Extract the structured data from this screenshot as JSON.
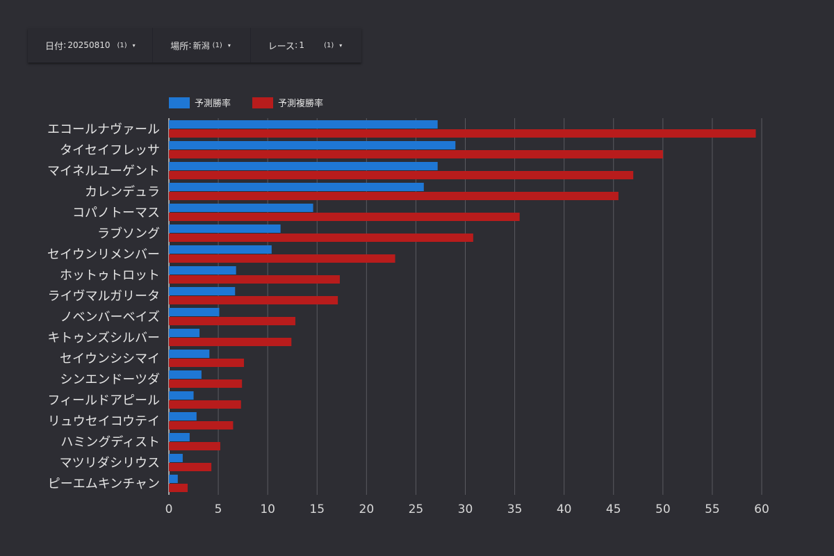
{
  "filters": [
    {
      "label": "日付",
      "value": "20250810",
      "count": "(1)",
      "caret": "▾"
    },
    {
      "label": "場所",
      "value": "新潟",
      "count": "(1)",
      "caret": "▾"
    },
    {
      "label": "レース",
      "value": "1",
      "count": "(1)",
      "caret": "▾"
    }
  ],
  "colors": {
    "series1": "#1f77d4",
    "series2": "#b81c1c",
    "grid": "#5a5a60",
    "background": "#2d2d33"
  },
  "chart_data": {
    "type": "bar",
    "orientation": "horizontal",
    "categories": [
      "エコールナヴァール",
      "タイセイフレッサ",
      "マイネルユーゲント",
      "カレンデュラ",
      "コパノトーマス",
      "ラブソング",
      "セイウンリメンバー",
      "ホットゥトロット",
      "ライヴマルガリータ",
      "ノベンバーベイズ",
      "キトゥンズシルバー",
      "セイウンシシマイ",
      "シンエンドーツダ",
      "フィールドアピール",
      "リュウセイコウテイ",
      "ハミングディスト",
      "マツリダシリウス",
      "ピーエムキンチャン"
    ],
    "series": [
      {
        "name": "予測勝率",
        "color": "#1f77d4",
        "values": [
          27.2,
          29.0,
          27.2,
          25.8,
          14.6,
          11.3,
          10.4,
          6.8,
          6.7,
          5.1,
          3.1,
          4.1,
          3.3,
          2.5,
          2.8,
          2.1,
          1.4,
          0.9
        ]
      },
      {
        "name": "予測複勝率",
        "color": "#b81c1c",
        "values": [
          59.4,
          50.0,
          47.0,
          45.5,
          35.5,
          30.8,
          22.9,
          17.3,
          17.1,
          12.8,
          12.4,
          7.6,
          7.4,
          7.3,
          6.5,
          5.2,
          4.3,
          1.9
        ]
      }
    ],
    "xlim": [
      0,
      60
    ],
    "xticks": [
      0,
      5,
      10,
      15,
      20,
      25,
      30,
      35,
      40,
      45,
      50,
      55,
      60
    ],
    "grid": true,
    "legend": "top-left"
  }
}
